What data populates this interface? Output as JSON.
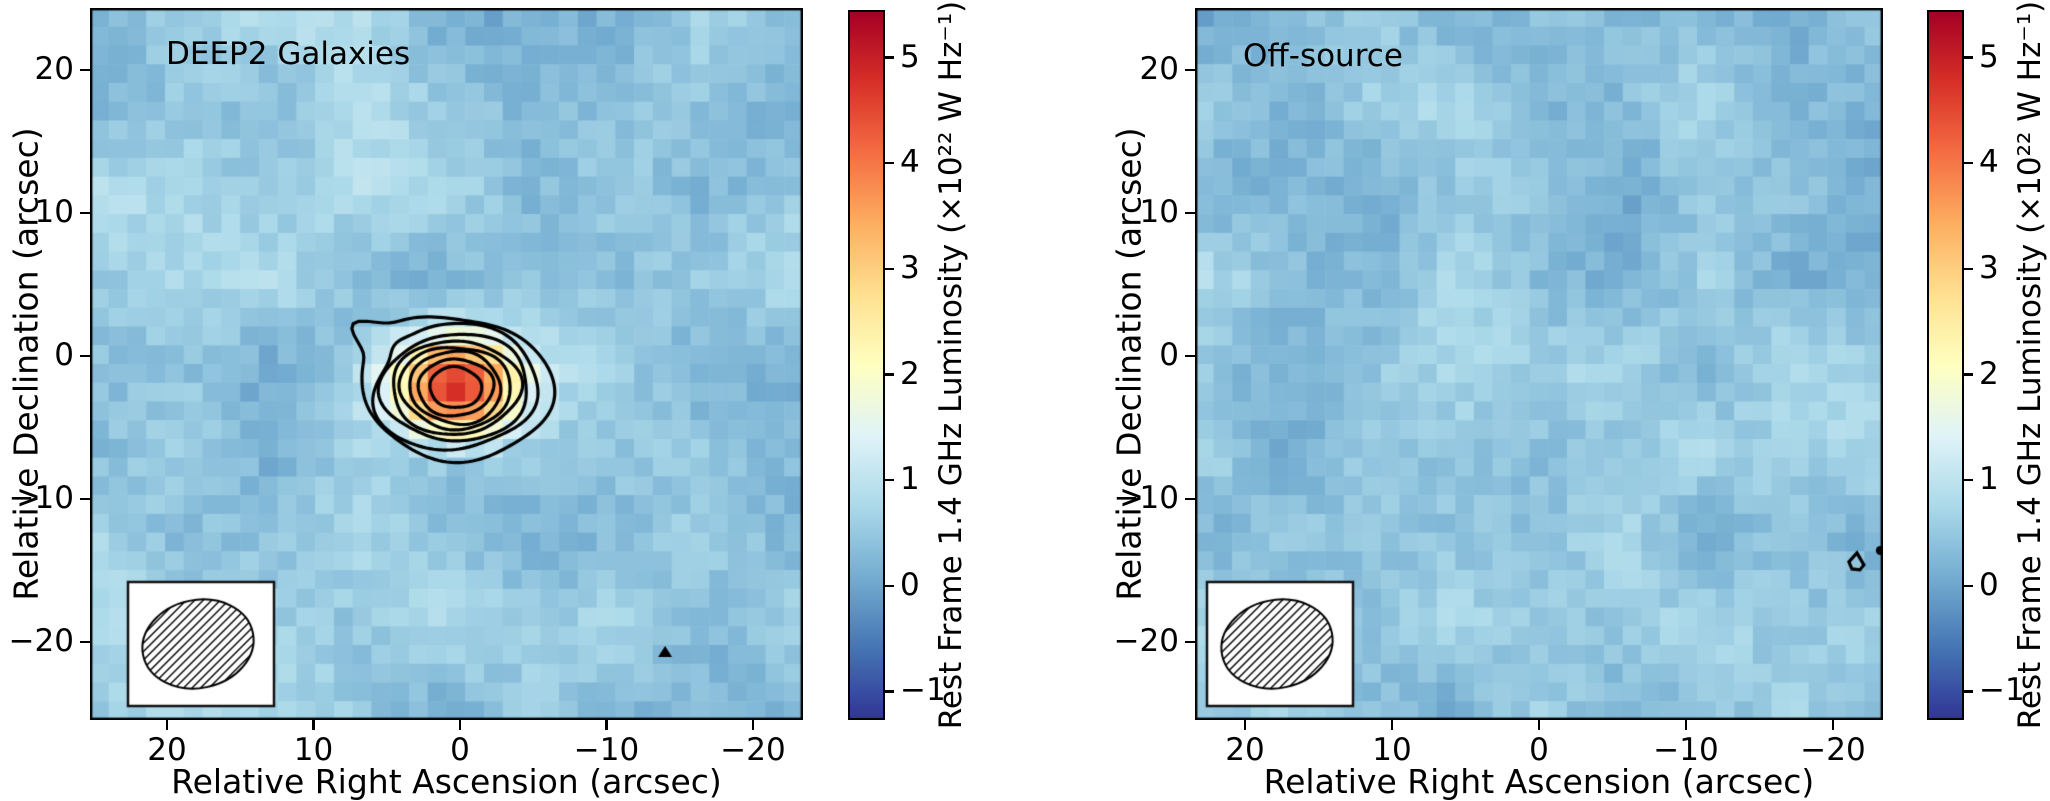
{
  "figure": {
    "background": "#ffffff",
    "text_color": "#000000"
  },
  "panels": [
    {
      "title": "DEEP2 Galaxies",
      "xlabel": "Relative Right Ascension (arcsec)",
      "ylabel": "Relative Declination (arcsec)",
      "xtick_labels": [
        "20",
        "10",
        "0",
        "−10",
        "−20"
      ],
      "ytick_labels": [
        "20",
        "10",
        "0",
        "−10",
        "−20"
      ]
    },
    {
      "title": "Off-source",
      "xlabel": "Relative Right Ascension (arcsec)",
      "ylabel": "Relative Declination (arcsec)",
      "xtick_labels": [
        "20",
        "10",
        "0",
        "−10",
        "−20"
      ],
      "ytick_labels": [
        "20",
        "10",
        "0",
        "−10",
        "−20"
      ]
    }
  ],
  "colorbar": {
    "label": "Rest Frame 1.4 GHz Luminosity (×10²² W Hz⁻¹)",
    "tick_labels": [
      "5",
      "4",
      "3",
      "2",
      "1",
      "0",
      "−1"
    ],
    "tick_values": [
      5,
      4,
      3,
      2,
      1,
      0,
      -1
    ],
    "vmin": -1.27,
    "vmax": 5.45,
    "colormap_name": "RdYlBu_r",
    "colormap_stops": [
      "#313695",
      "#4575b4",
      "#74add1",
      "#abd9e9",
      "#e0f3f8",
      "#ffffbf",
      "#fee090",
      "#fdae61",
      "#f46d43",
      "#d73027",
      "#a50026"
    ]
  },
  "chart_data": [
    {
      "type": "heatmap",
      "title": "DEEP2 Galaxies",
      "xlabel": "Relative Right Ascension (arcsec)",
      "ylabel": "Relative Declination (arcsec)",
      "xticks": [
        20,
        10,
        0,
        -10,
        -20
      ],
      "yticks": [
        20,
        10,
        0,
        -10,
        -20
      ],
      "xlim": [
        25.3,
        -23.4
      ],
      "ylim": [
        -25.6,
        24.3
      ],
      "x_axis_inverted": true,
      "grid": false,
      "colorbar_label": "Rest Frame 1.4 GHz Luminosity (×10²² W Hz⁻¹)",
      "value_range_1e22_W_per_Hz": [
        -1.27,
        5.45
      ],
      "background_noise_1e22_W_per_Hz": {
        "mean": 0.45,
        "spread": 0.45
      },
      "source": {
        "present": true,
        "center_ra_arcsec": 0.3,
        "center_dec_arcsec": -2.2,
        "peak_1e22_W_per_Hz": 4.3,
        "outer_contour_radius_arcsec": 6.4,
        "contour_rings": 8,
        "contour_color": "#000000"
      },
      "beam_inset": {
        "position": "lower-left",
        "shape": "ellipse",
        "hatched": true
      },
      "extra_marks": [
        {
          "shape": "filled-triangle",
          "ra_arcsec": -14.0,
          "dec_arcsec": -20.7
        }
      ]
    },
    {
      "type": "heatmap",
      "title": "Off-source",
      "xlabel": "Relative Right Ascension (arcsec)",
      "ylabel": "Relative Declination (arcsec)",
      "xticks": [
        20,
        10,
        0,
        -10,
        -20
      ],
      "yticks": [
        20,
        10,
        0,
        -10,
        -20
      ],
      "xlim": [
        23.4,
        -23.5
      ],
      "ylim": [
        -25.6,
        24.3
      ],
      "x_axis_inverted": true,
      "grid": false,
      "colorbar_label": "Rest Frame 1.4 GHz Luminosity (×10²² W Hz⁻¹)",
      "value_range_1e22_W_per_Hz": [
        -1.27,
        5.45
      ],
      "background_noise_1e22_W_per_Hz": {
        "mean": 0.45,
        "spread": 0.45
      },
      "source": {
        "present": false
      },
      "beam_inset": {
        "position": "lower-left",
        "shape": "ellipse",
        "hatched": true
      },
      "extra_marks": [
        {
          "shape": "open-contour",
          "ra_arcsec": -21.7,
          "dec_arcsec": -14.4
        },
        {
          "shape": "edge-dot",
          "ra_arcsec": -23.3,
          "dec_arcsec": -13.6
        }
      ]
    }
  ]
}
